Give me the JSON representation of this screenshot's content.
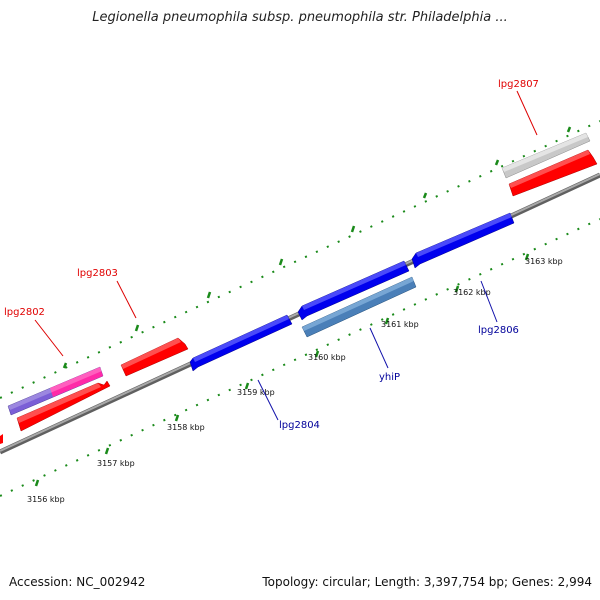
{
  "title": "Legionella pneumophila subsp. pneumophila str. Philadelphia ...",
  "footer": {
    "accession": "Accession: NC_002942",
    "topology": "Topology: circular; Length: 3,397,754 bp; Genes: 2,994"
  },
  "ticks": [
    {
      "label": "3156 kbp"
    },
    {
      "label": "3157 kbp"
    },
    {
      "label": "3158 kbp"
    },
    {
      "label": "3159 kbp"
    },
    {
      "label": "3160 kbp"
    },
    {
      "label": "3161 kbp"
    },
    {
      "label": "3162 kbp"
    },
    {
      "label": "3163 kbp"
    }
  ],
  "genes": [
    {
      "name": "lpg2802",
      "label": "lpg2802",
      "strand": "forward",
      "color": "#ff2aa8",
      "label_color": "#e00000"
    },
    {
      "name": "lpg2803",
      "label": "lpg2803",
      "strand": "forward",
      "color": "#ff0000",
      "label_color": "#e00000"
    },
    {
      "name": "lpg2804",
      "label": "lpg2804",
      "strand": "reverse",
      "color": "#0000ee",
      "label_color": "#00009a"
    },
    {
      "name": "yhiP",
      "label": "yhiP",
      "strand": "reverse",
      "color": "#4a7fb8",
      "label_color": "#00009a"
    },
    {
      "name": "lpg2806",
      "label": "lpg2806",
      "strand": "reverse",
      "color": "#0000ee",
      "label_color": "#00009a"
    },
    {
      "name": "lpg2807",
      "label": "lpg2807",
      "strand": "forward",
      "color": "#c8c8c8",
      "label_color": "#e00000"
    }
  ],
  "colors": {
    "backbone": "#808080",
    "tick": "#1a8a1a",
    "forward_cds": "#ff0000",
    "reverse_cds": "#0000ee"
  }
}
